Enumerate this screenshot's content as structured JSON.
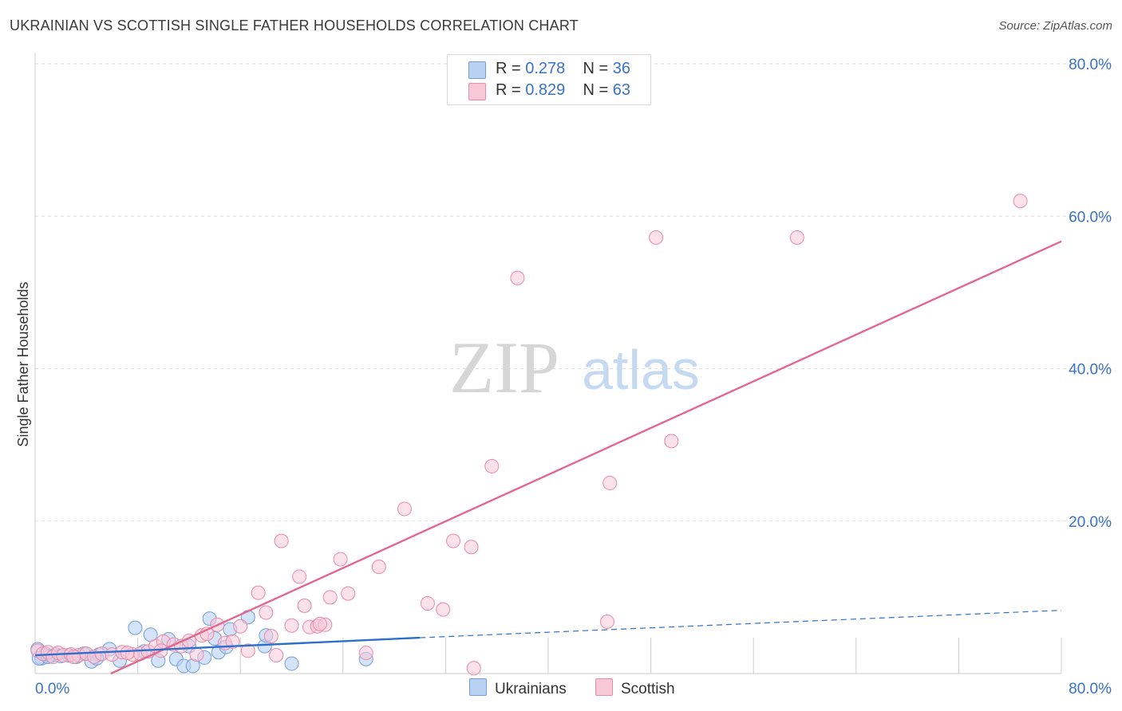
{
  "title": "UKRAINIAN VS SCOTTISH SINGLE FATHER HOUSEHOLDS CORRELATION CHART",
  "source": "Source: ZipAtlas.com",
  "watermark": {
    "zip": "ZIP",
    "atlas": "atlas"
  },
  "legend": {
    "ukrainians": {
      "r_label": "R =",
      "r_value": "0.278",
      "n_label": "N =",
      "n_value": "36"
    },
    "scottish": {
      "r_label": "R =",
      "r_value": "0.829",
      "n_label": "N =",
      "n_value": "63"
    }
  },
  "colors": {
    "ukrainians_fill": "#b9d1f3",
    "ukrainians_stroke": "#6f9fdc",
    "ukrainians_line": "#2d6fcc",
    "scottish_fill": "#f8c8d7",
    "scottish_stroke": "#e98aa8",
    "scottish_line": "#e2688f",
    "axis_text": "#3a72c4",
    "grid": "#dddddd"
  },
  "chart_data": {
    "type": "scatter",
    "title": "UKRAINIAN VS SCOTTISH SINGLE FATHER HOUSEHOLDS CORRELATION CHART",
    "xlabel": "",
    "ylabel": "Single Father Households",
    "xlim": [
      0,
      80
    ],
    "ylim": [
      0,
      80
    ],
    "x_tick_labels": [
      "0.0%",
      "80.0%"
    ],
    "y_tick_labels": [
      "20.0%",
      "40.0%",
      "60.0%",
      "80.0%"
    ],
    "y_ticks": [
      20,
      40,
      60,
      80
    ],
    "x_grid_ticks": [
      8,
      16,
      24,
      32,
      40,
      48,
      56,
      64,
      72,
      80
    ],
    "legend_position": "bottom-center",
    "series": [
      {
        "name": "Ukrainians",
        "points": [
          [
            0.2,
            3.2
          ],
          [
            0.5,
            2.0
          ],
          [
            0.8,
            2.6
          ],
          [
            1.2,
            2.3
          ],
          [
            1.6,
            2.5
          ],
          [
            2.0,
            2.3
          ],
          [
            2.6,
            2.4
          ],
          [
            3.2,
            2.2
          ],
          [
            3.8,
            2.6
          ],
          [
            4.4,
            1.6
          ],
          [
            5.0,
            2.5
          ],
          [
            5.8,
            3.2
          ],
          [
            6.6,
            1.7
          ],
          [
            7.8,
            6.0
          ],
          [
            8.5,
            2.9
          ],
          [
            9.0,
            5.1
          ],
          [
            9.6,
            1.7
          ],
          [
            10.4,
            4.5
          ],
          [
            11.0,
            1.9
          ],
          [
            11.6,
            1.0
          ],
          [
            12.0,
            3.6
          ],
          [
            12.3,
            1.0
          ],
          [
            13.2,
            2.1
          ],
          [
            13.6,
            7.2
          ],
          [
            14.0,
            4.6
          ],
          [
            14.3,
            2.8
          ],
          [
            14.9,
            3.5
          ],
          [
            15.2,
            5.8
          ],
          [
            16.6,
            7.4
          ],
          [
            17.9,
            3.6
          ],
          [
            18.0,
            5.0
          ],
          [
            20.0,
            1.3
          ],
          [
            25.8,
            1.9
          ],
          [
            0.3,
            2.0
          ],
          [
            1.0,
            2.2
          ],
          [
            4.8,
            2.0
          ]
        ],
        "trend": {
          "x": [
            0,
            30
          ],
          "y": [
            2.4,
            4.7
          ],
          "dashed_to": [
            80,
            8.3
          ]
        }
      },
      {
        "name": "Scottish",
        "points": [
          [
            0.2,
            3.0
          ],
          [
            0.6,
            2.6
          ],
          [
            1.0,
            2.8
          ],
          [
            1.4,
            2.2
          ],
          [
            1.8,
            2.7
          ],
          [
            2.2,
            2.4
          ],
          [
            2.8,
            2.5
          ],
          [
            3.4,
            2.4
          ],
          [
            4.0,
            2.6
          ],
          [
            4.6,
            2.2
          ],
          [
            5.2,
            2.6
          ],
          [
            6.0,
            2.5
          ],
          [
            6.8,
            2.8
          ],
          [
            7.6,
            2.5
          ],
          [
            8.2,
            2.6
          ],
          [
            8.8,
            2.9
          ],
          [
            9.4,
            3.6
          ],
          [
            10.0,
            4.2
          ],
          [
            10.8,
            3.8
          ],
          [
            11.4,
            3.6
          ],
          [
            12.0,
            4.3
          ],
          [
            12.6,
            2.5
          ],
          [
            13.0,
            5.0
          ],
          [
            13.4,
            5.2
          ],
          [
            14.2,
            6.4
          ],
          [
            14.8,
            4.0
          ],
          [
            15.4,
            4.2
          ],
          [
            16.0,
            6.2
          ],
          [
            16.6,
            3.0
          ],
          [
            17.4,
            10.6
          ],
          [
            18.0,
            8.0
          ],
          [
            18.4,
            4.9
          ],
          [
            18.8,
            2.4
          ],
          [
            19.2,
            17.4
          ],
          [
            20.0,
            6.3
          ],
          [
            20.6,
            12.7
          ],
          [
            21.0,
            8.9
          ],
          [
            21.4,
            6.1
          ],
          [
            22.0,
            6.2
          ],
          [
            22.6,
            6.4
          ],
          [
            22.2,
            6.5
          ],
          [
            23.0,
            10.0
          ],
          [
            23.8,
            15.0
          ],
          [
            24.4,
            10.5
          ],
          [
            25.8,
            2.7
          ],
          [
            26.8,
            14.0
          ],
          [
            28.8,
            21.6
          ],
          [
            30.6,
            9.2
          ],
          [
            31.8,
            8.4
          ],
          [
            32.6,
            17.4
          ],
          [
            34.0,
            16.6
          ],
          [
            34.2,
            0.7
          ],
          [
            35.6,
            27.2
          ],
          [
            37.6,
            51.9
          ],
          [
            44.6,
            6.8
          ],
          [
            44.8,
            25.0
          ],
          [
            48.4,
            57.2
          ],
          [
            49.6,
            30.5
          ],
          [
            59.4,
            57.2
          ],
          [
            76.8,
            62.0
          ],
          [
            3.0,
            2.2
          ],
          [
            7.2,
            2.7
          ],
          [
            9.8,
            3.0
          ]
        ],
        "trend": {
          "x": [
            5.9,
            80
          ],
          "y": [
            0,
            56.7
          ]
        }
      }
    ]
  },
  "bottom_legend": {
    "ukrainians": "Ukrainians",
    "scottish": "Scottish"
  }
}
